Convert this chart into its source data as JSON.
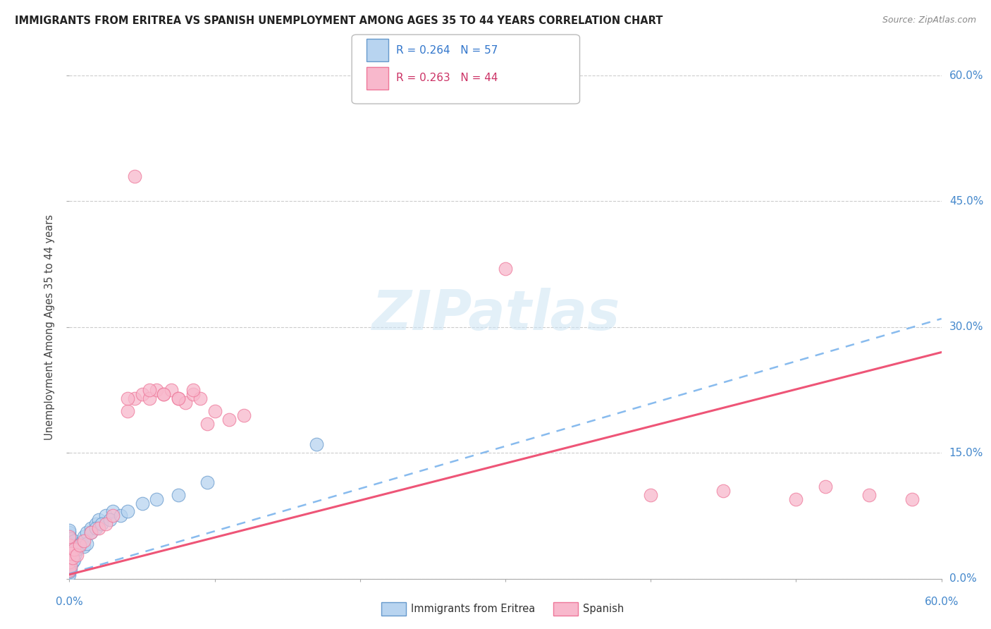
{
  "title": "IMMIGRANTS FROM ERITREA VS SPANISH UNEMPLOYMENT AMONG AGES 35 TO 44 YEARS CORRELATION CHART",
  "source": "Source: ZipAtlas.com",
  "ylabel": "Unemployment Among Ages 35 to 44 years",
  "legend_blue_r": "R = 0.264",
  "legend_blue_n": "N = 57",
  "legend_pink_r": "R = 0.263",
  "legend_pink_n": "N = 44",
  "legend_label_blue": "Immigrants from Eritrea",
  "legend_label_pink": "Spanish",
  "color_blue_fill": "#b8d4f0",
  "color_blue_edge": "#6699cc",
  "color_pink_fill": "#f8b8cc",
  "color_pink_edge": "#ee7799",
  "color_trendline_blue": "#88bbee",
  "color_trendline_pink": "#ee5577",
  "blue_trendline": [
    0.0,
    0.006,
    0.31
  ],
  "pink_trendline": [
    0.0,
    0.005,
    0.27
  ],
  "blue_x": [
    0.0,
    0.0,
    0.0,
    0.0,
    0.0,
    0.0,
    0.0,
    0.0,
    0.0,
    0.0,
    0.0,
    0.0,
    0.0,
    0.0,
    0.0,
    0.0,
    0.0,
    0.0,
    0.0,
    0.0,
    0.0,
    0.0,
    0.001,
    0.001,
    0.001,
    0.001,
    0.001,
    0.002,
    0.002,
    0.003,
    0.003,
    0.004,
    0.005,
    0.006,
    0.007,
    0.008,
    0.009,
    0.01,
    0.012,
    0.015,
    0.018,
    0.02,
    0.025,
    0.03,
    0.01,
    0.012,
    0.015,
    0.018,
    0.022,
    0.028,
    0.035,
    0.04,
    0.05,
    0.06,
    0.075,
    0.095,
    0.17
  ],
  "blue_y": [
    0.005,
    0.008,
    0.01,
    0.012,
    0.015,
    0.018,
    0.02,
    0.022,
    0.025,
    0.028,
    0.03,
    0.032,
    0.035,
    0.038,
    0.04,
    0.042,
    0.045,
    0.048,
    0.05,
    0.052,
    0.055,
    0.058,
    0.012,
    0.018,
    0.025,
    0.035,
    0.048,
    0.02,
    0.04,
    0.022,
    0.045,
    0.03,
    0.035,
    0.04,
    0.038,
    0.042,
    0.045,
    0.05,
    0.055,
    0.06,
    0.065,
    0.07,
    0.075,
    0.08,
    0.038,
    0.042,
    0.055,
    0.06,
    0.065,
    0.07,
    0.075,
    0.08,
    0.09,
    0.095,
    0.1,
    0.115,
    0.16
  ],
  "pink_x": [
    0.0,
    0.0,
    0.0,
    0.0,
    0.0,
    0.001,
    0.001,
    0.002,
    0.003,
    0.005,
    0.007,
    0.01,
    0.015,
    0.02,
    0.025,
    0.03,
    0.04,
    0.045,
    0.05,
    0.055,
    0.06,
    0.065,
    0.07,
    0.075,
    0.08,
    0.085,
    0.09,
    0.095,
    0.1,
    0.11,
    0.12,
    0.04,
    0.055,
    0.065,
    0.075,
    0.085,
    0.3,
    0.4,
    0.45,
    0.5,
    0.52,
    0.55,
    0.58,
    0.045
  ],
  "pink_y": [
    0.01,
    0.02,
    0.03,
    0.04,
    0.05,
    0.015,
    0.03,
    0.025,
    0.035,
    0.028,
    0.04,
    0.045,
    0.055,
    0.06,
    0.065,
    0.075,
    0.2,
    0.215,
    0.22,
    0.215,
    0.225,
    0.22,
    0.225,
    0.215,
    0.21,
    0.22,
    0.215,
    0.185,
    0.2,
    0.19,
    0.195,
    0.215,
    0.225,
    0.22,
    0.215,
    0.225,
    0.37,
    0.1,
    0.105,
    0.095,
    0.11,
    0.1,
    0.095,
    0.48
  ],
  "xlim": [
    0.0,
    0.6
  ],
  "ylim": [
    0.0,
    0.6
  ],
  "yticks": [
    0.0,
    0.15,
    0.3,
    0.45,
    0.6
  ],
  "ytick_labels": [
    "0.0%",
    "15.0%",
    "30.0%",
    "45.0%",
    "60.0%"
  ],
  "figsize": [
    14.06,
    8.92
  ],
  "dpi": 100
}
